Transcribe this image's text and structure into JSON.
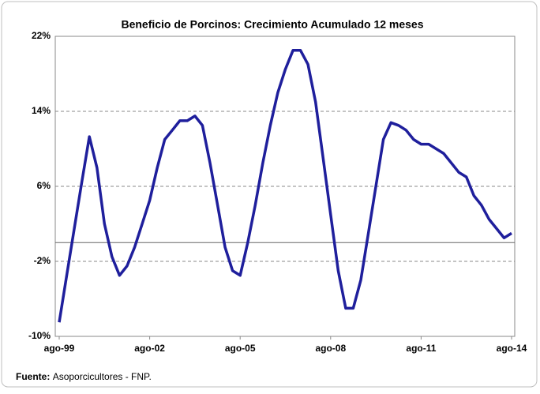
{
  "chart_data": {
    "type": "line",
    "title": "Beneficio de Porcinos: Crecimiento Acumulado 12 meses",
    "categories": [
      "ago-99",
      null,
      null,
      null,
      null,
      null,
      null,
      null,
      null,
      null,
      null,
      null,
      "ago-02",
      null,
      null,
      null,
      null,
      null,
      null,
      null,
      null,
      null,
      null,
      null,
      "ago-05",
      null,
      null,
      null,
      null,
      null,
      null,
      null,
      null,
      null,
      null,
      null,
      "ago-08",
      null,
      null,
      null,
      null,
      null,
      null,
      null,
      null,
      null,
      null,
      null,
      "ago-11",
      null,
      null,
      null,
      null,
      null,
      null,
      null,
      null,
      null,
      null,
      null,
      "ago-14"
    ],
    "series": [
      {
        "color": "#1f1f9c",
        "values": [
          -8.5,
          -3.5,
          1.5,
          6.5,
          11.3,
          8,
          2,
          -1.5,
          -3.5,
          -2.5,
          -0.5,
          2,
          4.5,
          8,
          11,
          12,
          13,
          13,
          13.5,
          12.5,
          8.5,
          4,
          -0.5,
          -3,
          -3.5,
          0,
          4,
          8.5,
          12.5,
          16,
          18.5,
          20.5,
          20.5,
          19,
          15,
          9,
          3,
          -3,
          -7,
          -7,
          -4,
          1,
          6,
          11,
          12.8,
          12.5,
          12,
          11,
          10.5,
          10.5,
          10,
          9.5,
          8.5,
          7.5,
          7,
          5,
          4,
          2.5,
          1.5,
          0.5,
          1
        ]
      }
    ],
    "ylim": [
      -10,
      22
    ],
    "yticks": [
      {
        "value": -10,
        "label": "-10%"
      },
      {
        "value": -2,
        "label": "-2%"
      },
      {
        "value": 6,
        "label": "6%"
      },
      {
        "value": 14,
        "label": "14%"
      },
      {
        "value": 22,
        "label": "22%"
      }
    ],
    "grid": true,
    "source_label": "Fuente:",
    "source": "Asoporcicultores - FNP."
  }
}
